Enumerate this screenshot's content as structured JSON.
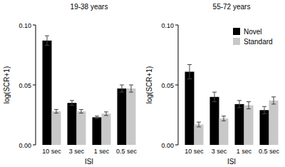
{
  "chart_data": [
    {
      "type": "bar",
      "title": "19-38 years",
      "x_label": "ISI",
      "y_label": "log(SCR+1)",
      "categories": [
        "10 sec",
        "3 sec",
        "1 sec",
        "0.5 sec"
      ],
      "series": [
        {
          "color": "#000000",
          "values": [
            0.087,
            0.035,
            0.023,
            0.047
          ],
          "errors": [
            0.004,
            0.002,
            0.001,
            0.003
          ]
        },
        {
          "color": "#c8c8c8",
          "values": [
            0.028,
            0.028,
            0.026,
            0.047
          ],
          "errors": [
            0.0015,
            0.0015,
            0.0015,
            0.003
          ]
        }
      ],
      "ylim": [
        0,
        0.1
      ],
      "yticks": [
        {
          "value": 0,
          "label": "0.00"
        },
        {
          "value": 0.05,
          "label": "0.05"
        },
        {
          "value": 0.1,
          "label": "0.10"
        }
      ]
    },
    {
      "type": "bar",
      "title": "55-72 years",
      "x_label": "ISI",
      "y_label": "log(SCR+1)",
      "categories": [
        "10 sec",
        "3 sec",
        "1 sec",
        "0.5 sec"
      ],
      "series": [
        {
          "name": "Novel",
          "color": "#000000",
          "values": [
            0.061,
            0.04,
            0.034,
            0.029
          ],
          "errors": [
            0.006,
            0.004,
            0.003,
            0.003
          ]
        },
        {
          "name": "Standard",
          "color": "#c8c8c8",
          "values": [
            0.017,
            0.022,
            0.033,
            0.037
          ],
          "errors": [
            0.002,
            0.002,
            0.003,
            0.003
          ]
        }
      ],
      "ylim": [
        0,
        0.1
      ],
      "yticks": [
        {
          "value": 0,
          "label": "0.00"
        },
        {
          "value": 0.05,
          "label": "0.05"
        },
        {
          "value": 0.1,
          "label": "0.10"
        }
      ],
      "legend": "top-right"
    }
  ]
}
